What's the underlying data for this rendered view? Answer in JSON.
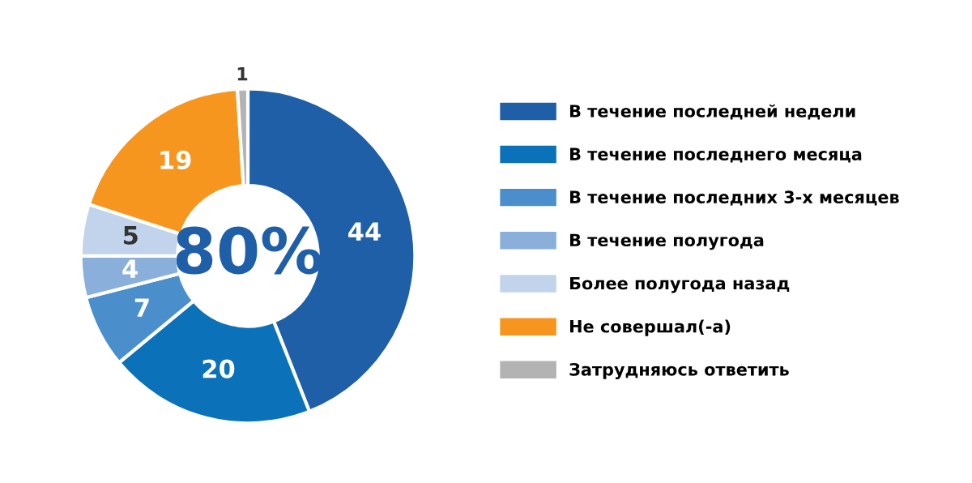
{
  "chart_data": {
    "type": "donut",
    "categories": [
      "В течение последней недели",
      "В течение последнего месяца",
      "В течение последних 3-х месяцев",
      "В течение полугода",
      "Более полугода назад",
      "Не совершал(-а)",
      "Затрудняюсь ответить"
    ],
    "values": [
      44,
      20,
      7,
      4,
      5,
      19,
      1
    ],
    "colors": [
      "#1f5fa8",
      "#0b72b9",
      "#4a8fcb",
      "#8aafdb",
      "#c2d4ec",
      "#f7961f",
      "#b3b3b3"
    ],
    "data_labels": true,
    "legend": "right",
    "annotations": [
      "80%"
    ]
  }
}
